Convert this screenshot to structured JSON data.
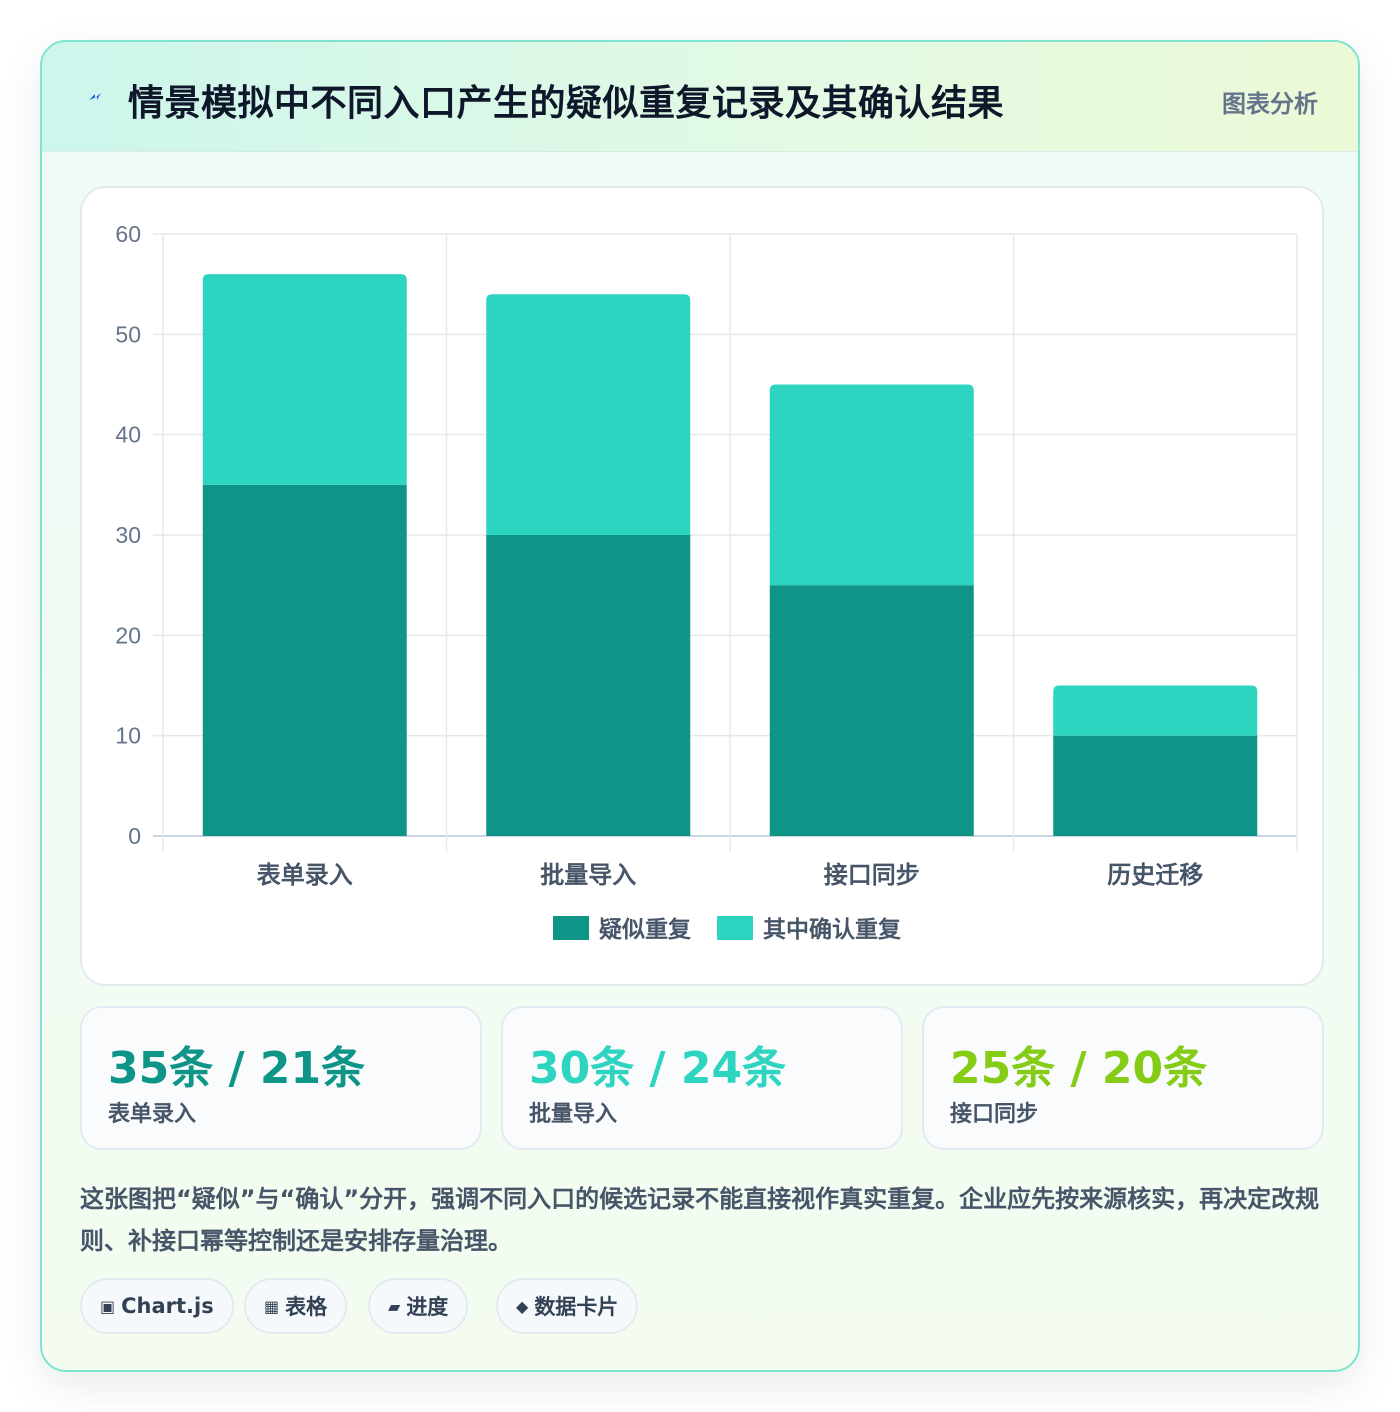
{
  "header": {
    "title": "情景模拟中不同入口产生的疑似重复记录及其确认结果",
    "tag": "图表分析",
    "icon": "bolt-icon"
  },
  "chart_data": {
    "type": "bar",
    "stacked": true,
    "categories": [
      "表单录入",
      "批量导入",
      "接口同步",
      "历史迁移"
    ],
    "series": [
      {
        "name": "疑似重复",
        "values": [
          35,
          30,
          25,
          10
        ],
        "color": "#0f9488"
      },
      {
        "name": "其中确认重复",
        "values": [
          21,
          24,
          20,
          5
        ],
        "color": "#2dd4bf"
      }
    ],
    "ylim": [
      0,
      60
    ],
    "yticks": [
      0,
      10,
      20,
      30,
      40,
      50,
      60
    ],
    "grid": true,
    "legend": "bottom-center"
  },
  "stats": [
    {
      "value": "35条 / 21条",
      "label": "表单录入",
      "color": "#0f9488"
    },
    {
      "value": "30条 / 24条",
      "label": "批量导入",
      "color": "#2dd4bf"
    },
    {
      "value": "25条 / 20条",
      "label": "接口同步",
      "color": "#84cc16"
    }
  ],
  "description": "这张图把“疑似”与“确认”分开，强调不同入口的候选记录不能直接视作真实重复。企业应先按来源核实，再决定改规则、补接口幂等控制还是安排存量治理。",
  "chips": [
    {
      "icon": "▣",
      "label": "Chart.js"
    },
    {
      "icon": "▦",
      "label": "表格"
    },
    {
      "icon": "▰",
      "label": "进度"
    },
    {
      "icon": "◆",
      "label": "数据卡片"
    }
  ]
}
